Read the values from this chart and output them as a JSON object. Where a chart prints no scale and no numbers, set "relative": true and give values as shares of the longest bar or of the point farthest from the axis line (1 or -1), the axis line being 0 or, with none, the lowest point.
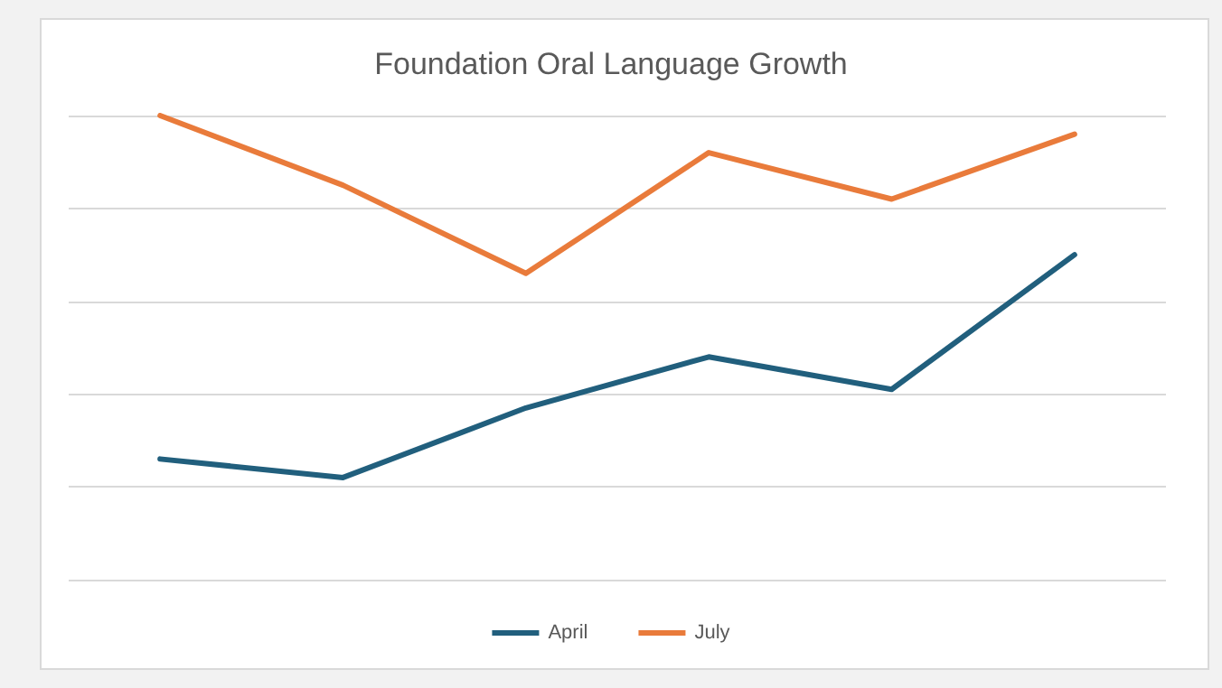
{
  "chart_data": {
    "type": "line",
    "title": "Foundation Oral Language Growth",
    "relative": true,
    "categories": [
      null,
      null,
      null,
      null,
      null,
      null
    ],
    "series": [
      {
        "name": "April",
        "color": "#215f7d",
        "values": [
          0.26,
          0.22,
          0.37,
          0.48,
          0.41,
          0.7
        ]
      },
      {
        "name": "July",
        "color": "#e97b3b",
        "values": [
          1,
          0.85,
          0.66,
          0.92,
          0.82,
          0.96
        ]
      }
    ],
    "grid": "y",
    "legend": "bottom",
    "marker": "none",
    "line_style": "solid"
  }
}
